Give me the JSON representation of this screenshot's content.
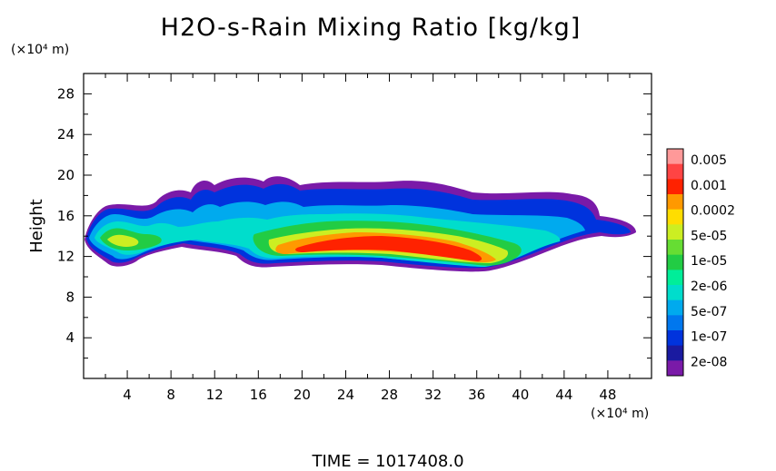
{
  "chart_data": {
    "type": "heatmap",
    "title": "H2O-s-Rain Mixing Ratio [kg/kg]",
    "ylabel": "Height",
    "y_unit": "(×10⁴ m)",
    "x_unit": "(×10⁴ m)",
    "footer": "TIME  =  1017408.0",
    "xlim": [
      0,
      52
    ],
    "ylim": [
      0,
      30
    ],
    "xticks": [
      4,
      8,
      12,
      16,
      20,
      24,
      28,
      32,
      36,
      40,
      44,
      48
    ],
    "yticks": [
      4,
      8,
      12,
      16,
      20,
      24,
      28
    ],
    "colorbar": {
      "labels": [
        "0.005",
        "0.001",
        "0.0002",
        "5e-05",
        "1e-05",
        "2e-06",
        "5e-07",
        "1e-07",
        "2e-08"
      ],
      "colors_top_to_bottom": [
        "#ff9999",
        "#ff4444",
        "#ff2200",
        "#ff9900",
        "#ffdd00",
        "#ccee22",
        "#66dd33",
        "#22cc44",
        "#00ee99",
        "#00ddcc",
        "#00aaee",
        "#0077ee",
        "#0033dd",
        "#1a1aa0",
        "#7a1aa8"
      ]
    },
    "contour_layers": [
      {
        "level": "2e-08",
        "color": "#7a1aa8"
      },
      {
        "level": "1e-07",
        "color": "#0033dd"
      },
      {
        "level": "5e-07",
        "color": "#00aaee"
      },
      {
        "level": "2e-06",
        "color": "#00ddcc"
      },
      {
        "level": "1e-05",
        "color": "#22cc44"
      },
      {
        "level": "5e-05",
        "color": "#ccee22"
      },
      {
        "level": "0.0002",
        "color": "#ff9900"
      },
      {
        "level": "0.001",
        "color": "#ff2200"
      }
    ]
  }
}
